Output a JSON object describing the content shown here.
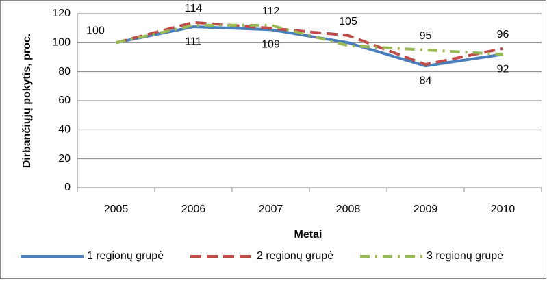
{
  "chart_data": {
    "type": "line",
    "x_label": "Metai",
    "y_label": "Dirbančiųjų pokytis, proc.",
    "categories": [
      "2005",
      "2006",
      "2007",
      "2008",
      "2009",
      "2010"
    ],
    "series": [
      {
        "name": "1 regionų grupė",
        "color": "#4a7ebb",
        "dash": "solid",
        "values": [
          100,
          111,
          109,
          100,
          84,
          92
        ],
        "value_labels": [
          "100",
          "111",
          "109",
          null,
          "84",
          "92"
        ]
      },
      {
        "name": "2 regionų grupė",
        "color": "#be4b48",
        "dash": "dashed",
        "values": [
          100,
          114,
          110,
          105,
          85,
          96
        ],
        "value_labels": [
          null,
          "114",
          null,
          "105",
          null,
          "96"
        ]
      },
      {
        "name": "3 regionų grupė",
        "color": "#98b954",
        "dash": "dashdot",
        "values": [
          100,
          112,
          112,
          98,
          95,
          92
        ],
        "value_labels": [
          null,
          null,
          "112",
          null,
          "95",
          null
        ]
      }
    ],
    "ylim": [
      0,
      120
    ],
    "yticks": [
      0,
      20,
      40,
      60,
      80,
      100,
      120
    ],
    "grid": true,
    "legend": "bottom"
  }
}
